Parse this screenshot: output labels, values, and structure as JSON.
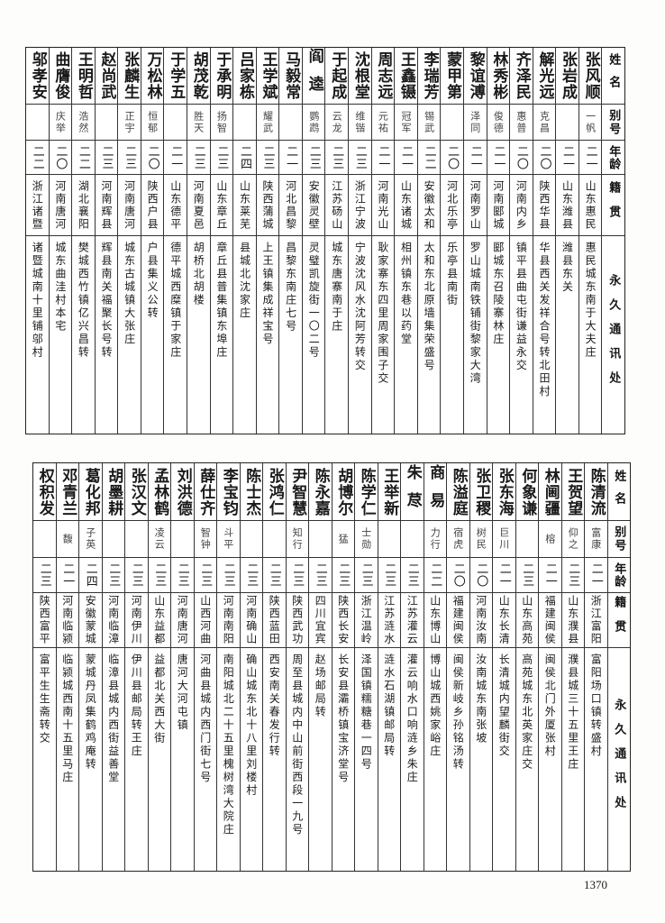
{
  "header": {
    "name": "姓名",
    "alias": "别号",
    "age": "年龄",
    "origin": "籍贯",
    "address": "永久通讯处"
  },
  "tables": [
    {
      "rows": [
        {
          "name": "张风顺",
          "alias": "一帆",
          "age": "二一",
          "origin": "山东惠民",
          "address": "惠民城东南于大夫庄"
        },
        {
          "name": "张岩成",
          "alias": "",
          "age": "二一",
          "origin": "山东潍县",
          "address": "潍县东关"
        },
        {
          "name": "解光远",
          "alias": "克昌",
          "age": "二〇",
          "origin": "陕西华县",
          "address": "华县西关发祥合号转北田村"
        },
        {
          "name": "齐泽民",
          "alias": "惠普",
          "age": "二〇",
          "origin": "河南内乡",
          "address": "镇平县曲屯街谦益永交"
        },
        {
          "name": "林秀彬",
          "alias": "俊德",
          "age": "二一",
          "origin": "河南郾城",
          "address": "郾城东召陵寨林庄"
        },
        {
          "name": "黎谊溥",
          "alias": "泽同",
          "age": "二一",
          "origin": "河南罗山",
          "address": "罗山城南铁铺街黎家大湾"
        },
        {
          "name": "蒙甲第",
          "alias": "",
          "age": "二〇",
          "origin": "河北乐亭",
          "address": "乐亭县南街"
        },
        {
          "name": "李瑞芳",
          "alias": "锡武",
          "age": "二二",
          "origin": "安徽太和",
          "address": "太和东北原墙集荣盛号"
        },
        {
          "name": "王鑫镊",
          "alias": "冠军",
          "age": "二一",
          "origin": "山东诸城",
          "address": "相州镇东巷以药堂"
        },
        {
          "name": "周志远",
          "alias": "元祐",
          "age": "二一",
          "origin": "河南光山",
          "address": "耿家寨东四里周家围子交"
        },
        {
          "name": "沈根堂",
          "alias": "维锴",
          "age": "二三",
          "origin": "浙江宁波",
          "address": "宁波沈风水沈阿芳转交"
        },
        {
          "name": "于起成",
          "alias": "云龙",
          "age": "二三",
          "origin": "江苏砀山",
          "address": "城东唐寨南于庄"
        },
        {
          "name": "阎逵",
          "alias": "鹦鹉",
          "age": "二三",
          "origin": "安徽灵壁",
          "address": "灵璧凯旋街一〇二号"
        },
        {
          "name": "马毅常",
          "alias": "",
          "age": "二一",
          "origin": "河北昌黎",
          "address": "昌黎东南庄七号"
        },
        {
          "name": "王学斌",
          "alias": "耀武",
          "age": "二三",
          "origin": "陕西蒲城",
          "address": "上王镇集成祥宝号"
        },
        {
          "name": "吕家栋",
          "alias": "",
          "age": "二四",
          "origin": "山东莱芜",
          "address": "县城北沈家庄"
        },
        {
          "name": "于承明",
          "alias": "扬智",
          "age": "二三",
          "origin": "山东章丘",
          "address": "章丘县普集镇东埠庄"
        },
        {
          "name": "胡茂乾",
          "alias": "胜天",
          "age": "二三",
          "origin": "河南夏邑",
          "address": "胡桥北胡楼"
        },
        {
          "name": "于学五",
          "alias": "",
          "age": "二一",
          "origin": "山东德平",
          "address": "德平城西糜镇于家庄"
        },
        {
          "name": "万松林",
          "alias": "恒郁",
          "age": "二〇",
          "origin": "陕西户县",
          "address": "户县集义公转"
        },
        {
          "name": "张麟生",
          "alias": "正宇",
          "age": "二三",
          "origin": "河南唐河",
          "address": "城东古城镇大张庄"
        },
        {
          "name": "赵尚武",
          "alias": "",
          "age": "二三",
          "origin": "河南辉县",
          "address": "辉县南关福聚长号转"
        },
        {
          "name": "王明哲",
          "alias": "浩然",
          "age": "二二",
          "origin": "湖北襄阳",
          "address": "樊城西竹镇亿兴昌转"
        },
        {
          "name": "曲膺俊",
          "alias": "庆举",
          "age": "二〇",
          "origin": "河南唐河",
          "address": "城东曲洼村本宅"
        },
        {
          "name": "邬孝安",
          "alias": "",
          "age": "二二",
          "origin": "浙江诸暨",
          "address": "诸暨城南十里铺邬村"
        }
      ]
    },
    {
      "rows": [
        {
          "name": "陈清流",
          "alias": "富康",
          "age": "二一",
          "origin": "浙江富阳",
          "address": "富阳场口镇转盛村"
        },
        {
          "name": "王贺望",
          "alias": "仰之",
          "age": "二三",
          "origin": "山东濮县",
          "address": "濮县城三十五里王庄"
        },
        {
          "name": "林阃疆",
          "alias": "榕",
          "age": "二一",
          "origin": "福建闽侯",
          "address": "闽侯北门外厦张村"
        },
        {
          "name": "何象谦",
          "alias": "",
          "age": "二三",
          "origin": "山东高苑",
          "address": "高苑城东北英家庄交"
        },
        {
          "name": "张东海",
          "alias": "巨川",
          "age": "二一",
          "origin": "山东长清",
          "address": "长清城内望麟街交"
        },
        {
          "name": "张卫稷",
          "alias": "树民",
          "age": "二〇",
          "origin": "河南汝南",
          "address": "汝南城东南张坡"
        },
        {
          "name": "陈溢庭",
          "alias": "宿虎",
          "age": "二〇",
          "origin": "福建闽侯",
          "address": "闽侯新岐乡孙铭汤转"
        },
        {
          "name": "商易",
          "alias": "力行",
          "age": "二二",
          "origin": "山东博山",
          "address": "博山城西姚家峪庄"
        },
        {
          "name": "朱荩",
          "alias": "",
          "age": "二三",
          "origin": "江苏灌云",
          "address": "灌云响水口响涟乡朱庄"
        },
        {
          "name": "王举新",
          "alias": "",
          "age": "二三",
          "origin": "江苏涟水",
          "address": "涟水石湖镇邮局转"
        },
        {
          "name": "陈学仁",
          "alias": "士勋",
          "age": "二三",
          "origin": "浙江温岭",
          "address": "泽国镇糯糖巷一四号"
        },
        {
          "name": "胡博尔",
          "alias": "猛",
          "age": "二三",
          "origin": "陕西长安",
          "address": "长安县灞桥镇宝济堂号"
        },
        {
          "name": "陈永嘉",
          "alias": "",
          "age": "二三",
          "origin": "四川宜宾",
          "address": "赵场邮局转"
        },
        {
          "name": "尹智慧",
          "alias": "知行",
          "age": "二三",
          "origin": "陕西武功",
          "address": "周至县城内中山前街西段一九号"
        },
        {
          "name": "张鸿仁",
          "alias": "",
          "age": "二三",
          "origin": "陕西蓝田",
          "address": "西安南关春发行转"
        },
        {
          "name": "陈士杰",
          "alias": "",
          "age": "二三",
          "origin": "河南确山",
          "address": "确山城东北十八里刘楼村"
        },
        {
          "name": "李宝钧",
          "alias": "斗平",
          "age": "二三",
          "origin": "河南南阳",
          "address": "南阳城北二十五里槐树湾大院庄"
        },
        {
          "name": "薛仕齐",
          "alias": "智钟",
          "age": "二三",
          "origin": "山西河曲",
          "address": "河曲县城内西门街七号"
        },
        {
          "name": "刘洪德",
          "alias": "",
          "age": "二三",
          "origin": "河南唐河",
          "address": "唐河大河屯镇"
        },
        {
          "name": "孟林鹤",
          "alias": "凌云",
          "age": "二三",
          "origin": "山东益都",
          "address": "益都北关西大街"
        },
        {
          "name": "张汉文",
          "alias": "",
          "age": "二三",
          "origin": "河南伊川",
          "address": "伊川县邮局转王庄"
        },
        {
          "name": "胡墨耕",
          "alias": "",
          "age": "二三",
          "origin": "河南临漳",
          "address": "临漳县城内西街益善堂"
        },
        {
          "name": "葛化邦",
          "alias": "子英",
          "age": "二四",
          "origin": "安徽蒙城",
          "address": "蒙城丹凤集鹤鸡庵转"
        },
        {
          "name": "邓青兰",
          "alias": "馥",
          "age": "二一",
          "origin": "河南临颍",
          "address": "临颍城西南十五里马庄"
        },
        {
          "name": "权积发",
          "alias": "",
          "age": "二三",
          "origin": "陕西富平",
          "address": "富平生生斋转交"
        }
      ]
    }
  ],
  "page_number": "1370"
}
